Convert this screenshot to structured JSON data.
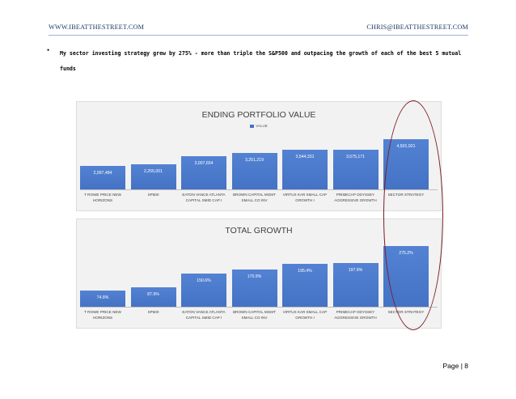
{
  "header": {
    "left": "WWW.IBEATTHESTREET.COM",
    "right": "CHRIS@IBEATTHESTREET.COM"
  },
  "bullet": {
    "symbol": "•",
    "text": "My sector investing strategy grew by 275% - more than triple the S&P500 and outpacing the growth of each of the best 5 mutual funds"
  },
  "chart_data": [
    {
      "type": "bar",
      "title": "ENDING PORTFOLIO VALUE",
      "legend": "VALUE",
      "categories": [
        [
          "T ROWE PRICE NEW",
          "HORIZONS"
        ],
        [
          "SP500"
        ],
        [
          "EATON VANCE ATLANTA",
          "CAPITAL SMID CAP I"
        ],
        [
          "BROWN CAPITAL MGMT",
          "SMALL CO INV"
        ],
        [
          "VIRTUS KAR SMALL CAP",
          "GROWTH I"
        ],
        [
          "PRIMECAP ODYSSEY",
          "AGGRESSIVE GROWTH"
        ],
        [
          "SECTOR STRATEGY"
        ]
      ],
      "values": [
        2097484,
        2255001,
        3007654,
        3251219,
        3544331,
        3575171,
        4501921
      ],
      "labels": [
        "2,097,484",
        "2,255,001",
        "3,007,654",
        "3,251,219",
        "3,544,331",
        "3,575,171",
        "4,501,921"
      ],
      "ylim": [
        0,
        4800000
      ],
      "bar_color": "#4472c4"
    },
    {
      "type": "bar",
      "title": "TOTAL GROWTH",
      "categories": [
        [
          "T ROWE PRICE NEW",
          "HORIZONS"
        ],
        [
          "SP500"
        ],
        [
          "EATON VANCE ATLANTA",
          "CAPITAL SMID CAP I"
        ],
        [
          "BROWN CAPITAL MGMT",
          "SMALL CO INV"
        ],
        [
          "VIRTUS KAR SMALL CAP",
          "GROWTH I"
        ],
        [
          "PRIMECAP ODYSSEY",
          "AGGRESSIVE GROWTH"
        ],
        [
          "SECTOR STRATEGY"
        ]
      ],
      "values": [
        74.8,
        87.9,
        150.6,
        170.9,
        195.4,
        197.9,
        275.2
      ],
      "labels": [
        "74.8%",
        "87.9%",
        "150.6%",
        "170.9%",
        "195.4%",
        "197.9%",
        "275.2%"
      ],
      "ylim": [
        0,
        295
      ],
      "bar_color": "#4472c4"
    }
  ],
  "highlight_color": "#7b1c22",
  "footer": {
    "page": "Page | 8"
  }
}
